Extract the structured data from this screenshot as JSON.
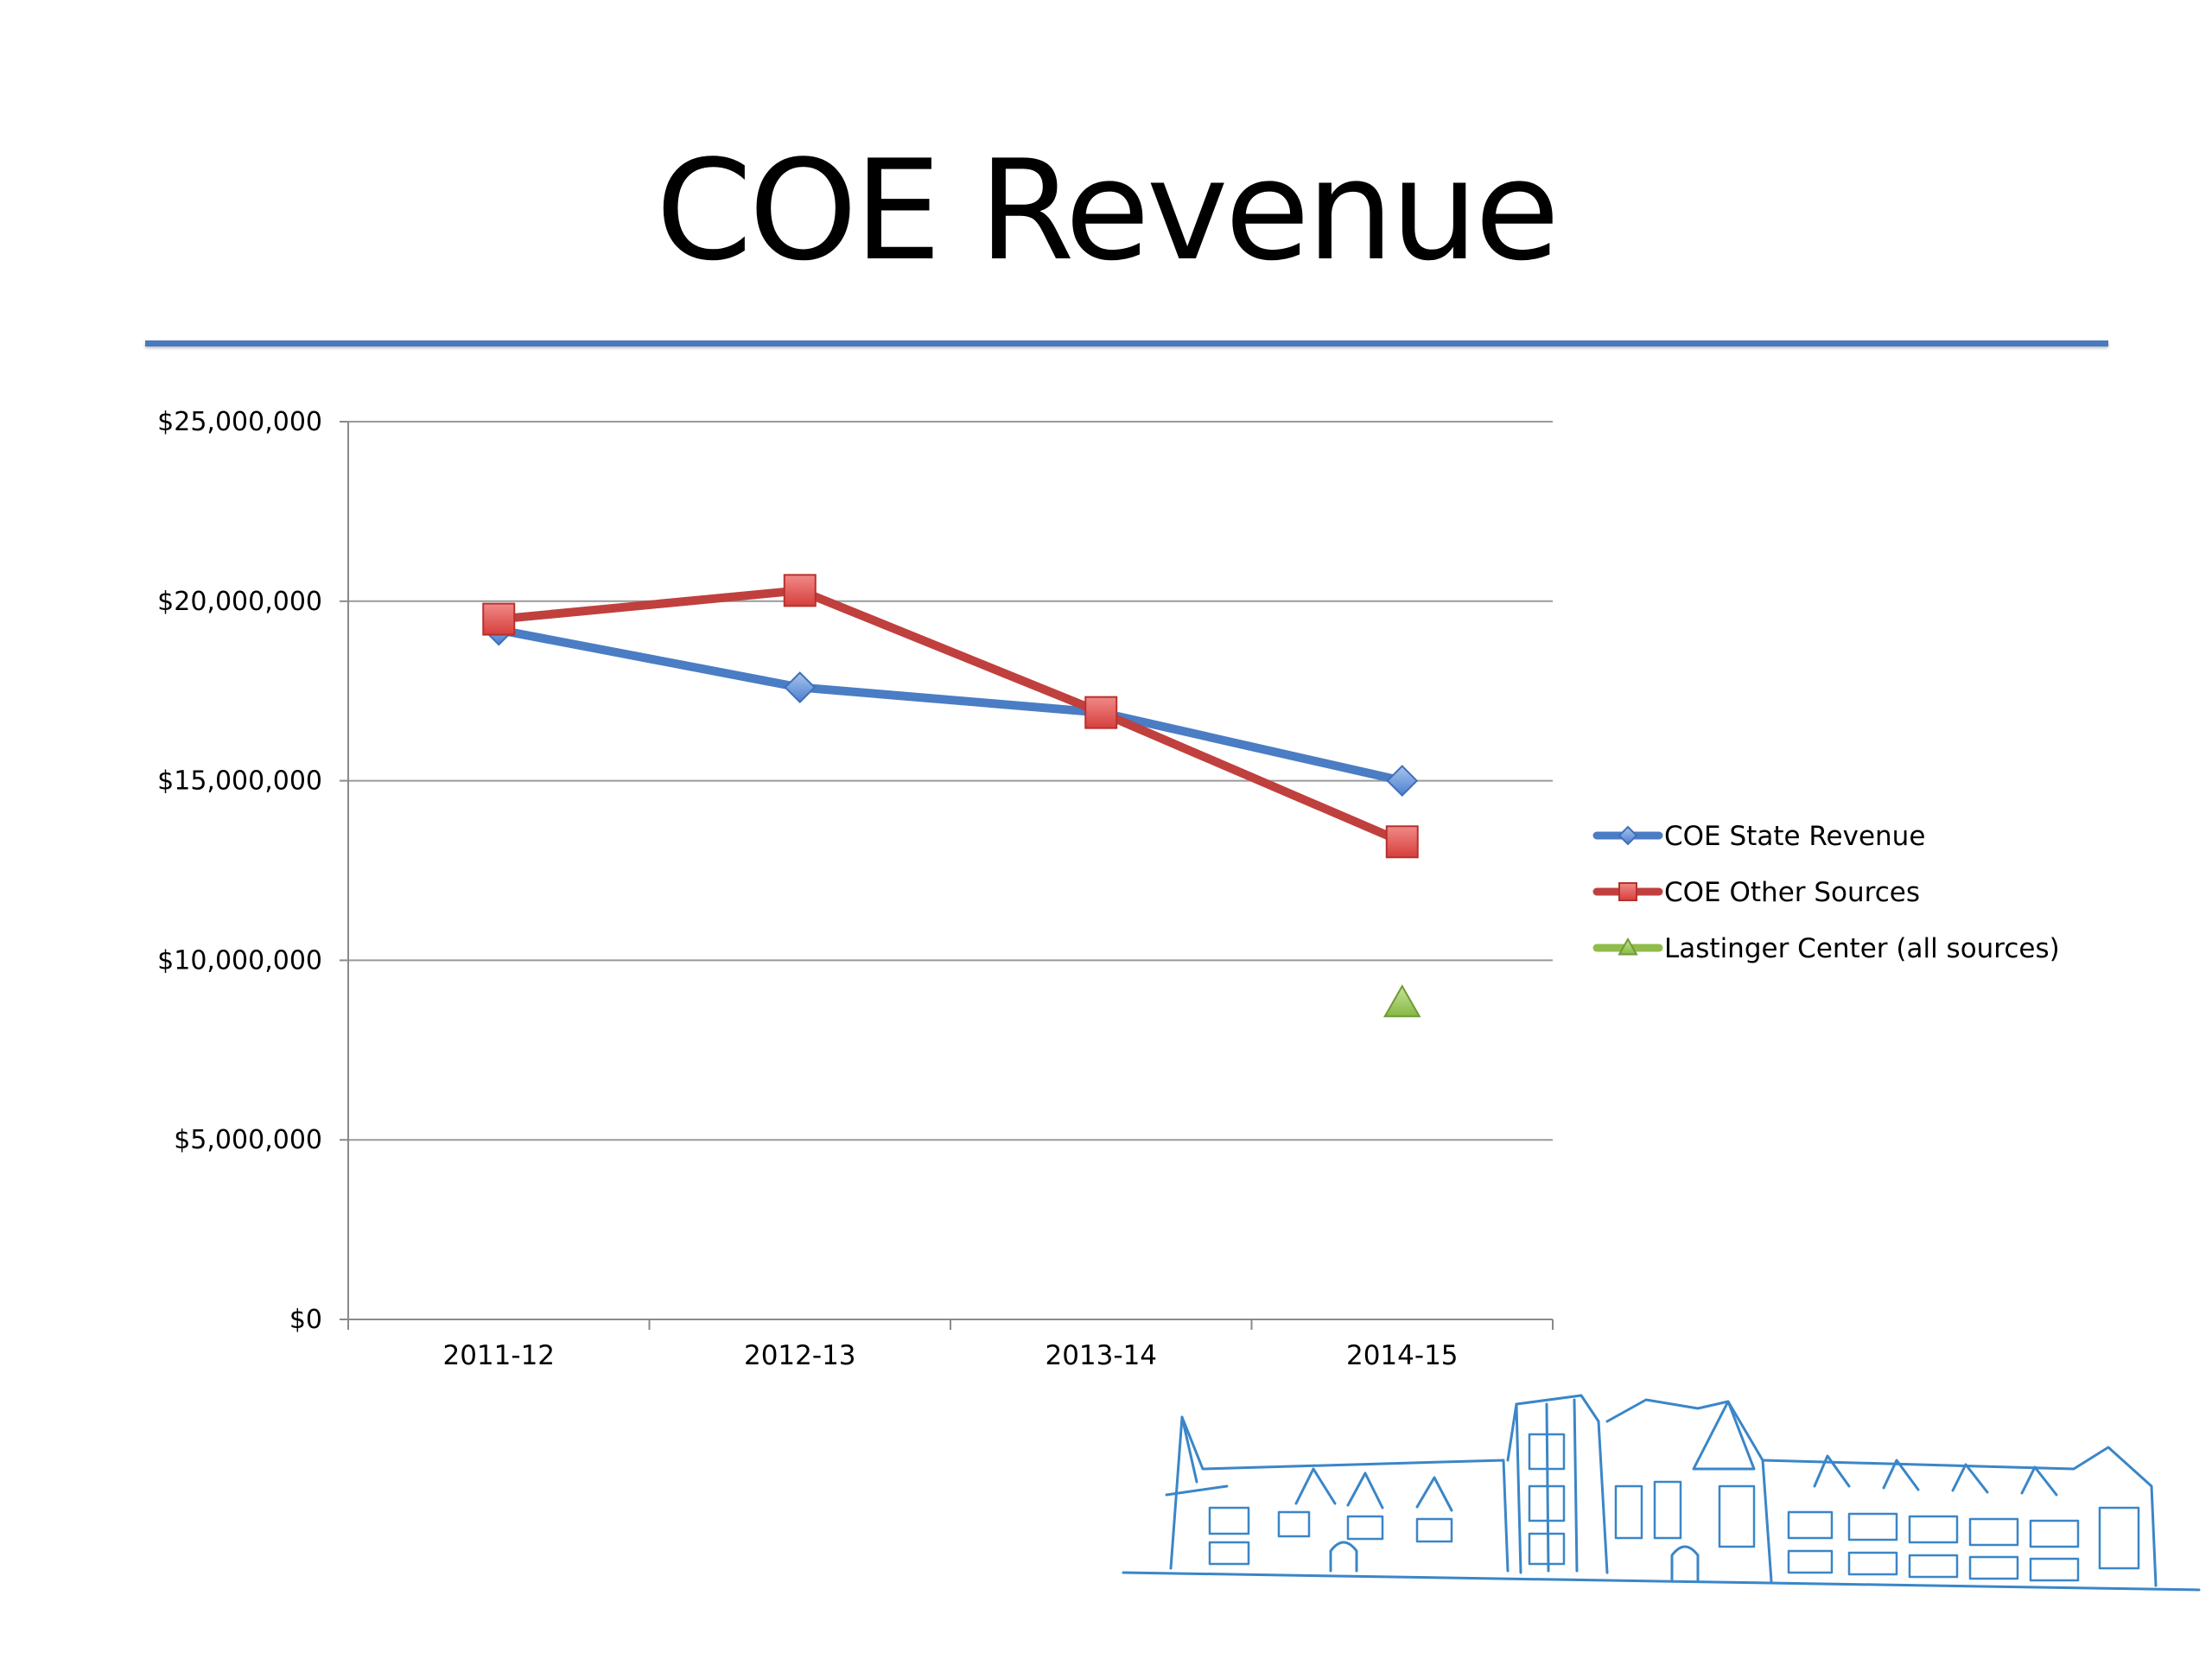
{
  "slide": {
    "title": "COE Revenue",
    "accent_color": "#4a79be"
  },
  "chart_data": {
    "type": "line",
    "title": "",
    "xlabel": "",
    "ylabel": "",
    "categories": [
      "2011-12",
      "2012-13",
      "2013-14",
      "2014-15"
    ],
    "ylim": [
      0,
      25000000
    ],
    "yticks": [
      0,
      5000000,
      10000000,
      15000000,
      20000000,
      25000000
    ],
    "ytick_labels": [
      "$0",
      "$5,000,000",
      "$10,000,000",
      "$15,000,000",
      "$20,000,000",
      "$25,000,000"
    ],
    "grid": true,
    "legend_position": "right",
    "series": [
      {
        "name": "COE State Revenue",
        "color": "#4a7dc4",
        "marker": "diamond",
        "values": [
          19200000,
          17600000,
          16900000,
          15000000
        ]
      },
      {
        "name": "COE Other Sources",
        "color": "#c0403e",
        "marker": "square",
        "values": [
          19500000,
          20300000,
          16900000,
          13300000
        ]
      },
      {
        "name": "Lastinger Center (all sources)",
        "color": "#8fbc4a",
        "marker": "triangle",
        "values": [
          null,
          null,
          null,
          8800000
        ]
      }
    ]
  },
  "decoration": {
    "illustration": "building-sketch-illustration"
  }
}
